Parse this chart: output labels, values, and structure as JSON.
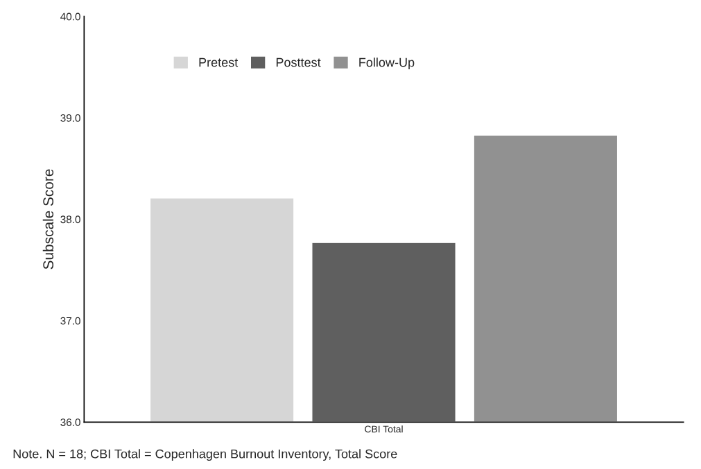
{
  "chart_data": {
    "type": "bar",
    "ylabel": "Subscale Score",
    "categories": [
      "CBI Total"
    ],
    "series": [
      {
        "name": "Pretest",
        "color": "#d6d6d6",
        "values": [
          38.21
        ]
      },
      {
        "name": "Posttest",
        "color": "#5f5f5f",
        "values": [
          37.77
        ]
      },
      {
        "name": "Follow-Up",
        "color": "#919191",
        "values": [
          38.83
        ]
      }
    ],
    "ylim": [
      36,
      40
    ],
    "yticks": [
      {
        "value": 36,
        "label": "36.0"
      },
      {
        "value": 37,
        "label": "37.0"
      },
      {
        "value": 38,
        "label": "38.0"
      },
      {
        "value": 39,
        "label": "39.0"
      },
      {
        "value": 40,
        "label": "40.0"
      }
    ],
    "grid": false,
    "legend": "top left",
    "annotations": [
      "Note. N = 18; CBI Total = Copenhagen Burnout Inventory, Total Score"
    ]
  }
}
